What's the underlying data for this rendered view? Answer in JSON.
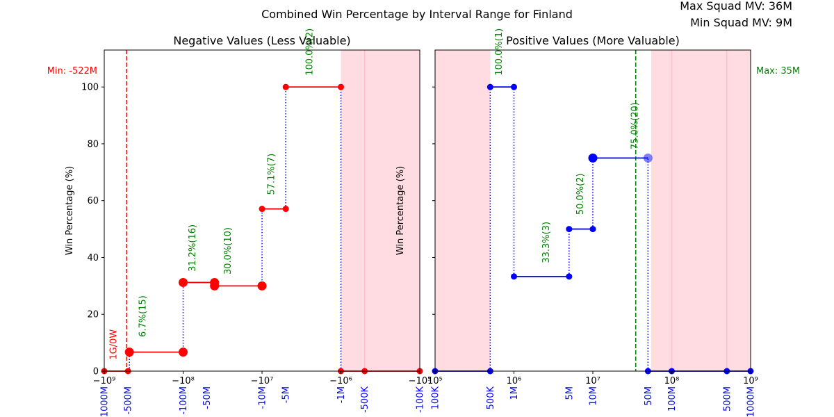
{
  "suptitle": "Combined Win Percentage by Interval Range for Finland",
  "squad_info": {
    "max": "Max Squad MV: 36M",
    "min": "Min Squad MV: 9M"
  },
  "colors": {
    "neg_line": "#ff0000",
    "pos_line": "#0000ff",
    "annotation": "#008000",
    "shade": "#ffc0cb",
    "tick_label_blue": "#0000ff"
  },
  "chart_data": [
    {
      "type": "line",
      "title": "Negative Values (Less Valuable)",
      "xlabel": "",
      "ylabel": "Win Percentage (%)",
      "xscale": "symlog",
      "xlim": [
        -1000000000,
        -100000
      ],
      "ylim": [
        0,
        113
      ],
      "yticks": [
        0,
        20,
        40,
        60,
        80,
        100
      ],
      "grid": false,
      "axis_tick_labels": [
        {
          "x": -1000000000,
          "label": "−10⁹"
        },
        {
          "x": -100000000,
          "label": "−10⁸"
        },
        {
          "x": -10000000,
          "label": "−10⁷"
        },
        {
          "x": -1000000,
          "label": "−10⁶"
        },
        {
          "x": -100000,
          "label": "−10⁵"
        }
      ],
      "interval_labels": [
        {
          "x": -1000000000,
          "label": "-1000M"
        },
        {
          "x": -500000000,
          "label": "-500M"
        },
        {
          "x": -100000000,
          "label": "-100M"
        },
        {
          "x": -50000000,
          "label": "-50M"
        },
        {
          "x": -10000000,
          "label": "-10M"
        },
        {
          "x": -5000000,
          "label": "-5M"
        },
        {
          "x": -1000000,
          "label": "-1M"
        },
        {
          "x": -500000,
          "label": "-500K"
        },
        {
          "x": -100000,
          "label": "-100K"
        }
      ],
      "segments": [
        {
          "x0": -1000000000,
          "x1": -500000000,
          "y": 0,
          "size": "small"
        },
        {
          "x0": -480000000,
          "x1": -100000000,
          "y": 6.7,
          "size": "large"
        },
        {
          "x0": -100000000,
          "x1": -40000000,
          "y": 31.2,
          "size": "large"
        },
        {
          "x0": -40000000,
          "x1": -10000000,
          "y": 30.0,
          "size": "large"
        },
        {
          "x0": -10000000,
          "x1": -5000000,
          "y": 57.1,
          "size": "small"
        },
        {
          "x0": -5000000,
          "x1": -1000000,
          "y": 100,
          "size": "small"
        },
        {
          "x0": -1000000,
          "x1": -100000,
          "y": 0,
          "size": "small"
        }
      ],
      "extra_points": [
        {
          "x": -500000,
          "y": 0
        }
      ],
      "connectors": [
        {
          "x": -480000000,
          "y0": 0,
          "y1": 6.7
        },
        {
          "x": -100000000,
          "y0": 6.7,
          "y1": 31.2
        },
        {
          "x": -10000000,
          "y0": 30.0,
          "y1": 57.1
        },
        {
          "x": -5000000,
          "y0": 57.1,
          "y1": 100
        },
        {
          "x": -1000000,
          "y0": 0,
          "y1": 100
        }
      ],
      "annotations": [
        {
          "x": -300000000,
          "y": 12,
          "text": "6.7%(15)"
        },
        {
          "x": -70000000,
          "y": 35,
          "text": "31.2%(16)"
        },
        {
          "x": -25000000,
          "y": 34,
          "text": "30.0%(10)"
        },
        {
          "x": -7000000,
          "y": 62,
          "text": "57.1%(7)"
        },
        {
          "x": -2300000,
          "y": 104,
          "text": "100.0%(2)"
        }
      ],
      "side_note": {
        "x": -700000000,
        "y": 4,
        "text": "1G/0W"
      },
      "vline": {
        "x": -522000000,
        "label": "Min: -522M"
      },
      "shade": [
        -1000000,
        -100000
      ],
      "shade_lines": [
        -500000
      ]
    },
    {
      "type": "line",
      "title": "Positive Values (More Valuable)",
      "xlabel": "",
      "ylabel": "Win Percentage (%)",
      "xscale": "log",
      "xlim": [
        100000,
        1000000000
      ],
      "ylim": [
        0,
        113
      ],
      "yticks": [
        0,
        20,
        40,
        60,
        80,
        100
      ],
      "grid": false,
      "axis_tick_labels": [
        {
          "x": 100000,
          "label": "10⁵"
        },
        {
          "x": 1000000,
          "label": "10⁶"
        },
        {
          "x": 10000000,
          "label": "10⁷"
        },
        {
          "x": 100000000,
          "label": "10⁸"
        },
        {
          "x": 1000000000,
          "label": "10⁹"
        }
      ],
      "interval_labels": [
        {
          "x": 100000,
          "label": "100K"
        },
        {
          "x": 500000,
          "label": "500K"
        },
        {
          "x": 1000000,
          "label": "1M"
        },
        {
          "x": 5000000,
          "label": "5M"
        },
        {
          "x": 10000000,
          "label": "10M"
        },
        {
          "x": 50000000,
          "label": "50M"
        },
        {
          "x": 100000000,
          "label": "100M"
        },
        {
          "x": 500000000,
          "label": "500M"
        },
        {
          "x": 1000000000,
          "label": "1000M"
        }
      ],
      "segments": [
        {
          "x0": 100000,
          "x1": 500000,
          "y": 0,
          "size": "small"
        },
        {
          "x0": 500000,
          "x1": 1000000,
          "y": 100,
          "size": "small"
        },
        {
          "x0": 1000000,
          "x1": 5000000,
          "y": 33.3,
          "size": "small"
        },
        {
          "x0": 5000000,
          "x1": 10000000,
          "y": 50.0,
          "size": "small"
        },
        {
          "x0": 10000000,
          "x1": 50000000,
          "y": 75.0,
          "size": "large"
        },
        {
          "x0": 50000000,
          "x1": 1000000000,
          "y": 0,
          "size": "small"
        }
      ],
      "extra_points": [
        {
          "x": 100000000,
          "y": 0
        },
        {
          "x": 500000000,
          "y": 0
        }
      ],
      "connectors": [
        {
          "x": 500000,
          "y0": 0,
          "y1": 100
        },
        {
          "x": 1000000,
          "y0": 33.3,
          "y1": 100
        },
        {
          "x": 5000000,
          "y0": 33.3,
          "y1": 50.0
        },
        {
          "x": 10000000,
          "y0": 50.0,
          "y1": 75.0
        },
        {
          "x": 50000000,
          "y0": 0,
          "y1": 75.0
        }
      ],
      "annotations": [
        {
          "x": 700000,
          "y": 104,
          "text": "100.0%(1)"
        },
        {
          "x": 2800000,
          "y": 38,
          "text": "33.3%(3)"
        },
        {
          "x": 7500000,
          "y": 55,
          "text": "50.0%(2)"
        },
        {
          "x": 37000000,
          "y": 78,
          "text": "75.0%(20)"
        }
      ],
      "vline": {
        "x": 35000000,
        "label": "Max: 35M"
      },
      "shade": [
        100000,
        500000
      ],
      "shade2": [
        55000000,
        1000000000
      ],
      "shade_lines": [
        100000000,
        500000000
      ]
    }
  ]
}
